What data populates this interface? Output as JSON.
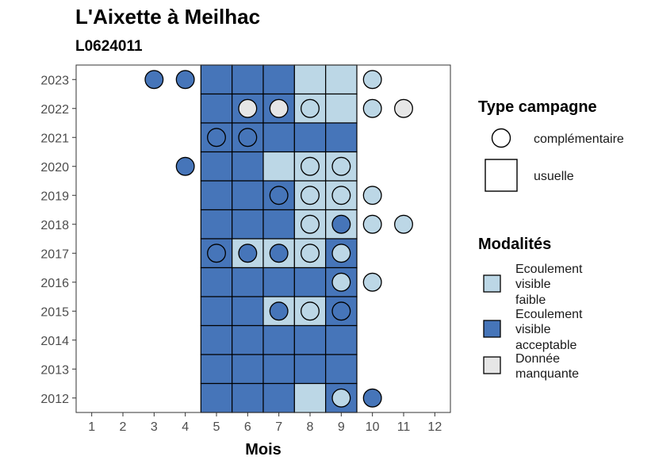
{
  "chart_data": {
    "type": "heatmap",
    "title": "L'Aixette à Meilhac",
    "subtitle": "L0624011",
    "xlabel": "Mois",
    "ylabel": "",
    "x_ticks": [
      "1",
      "2",
      "3",
      "4",
      "5",
      "6",
      "7",
      "8",
      "9",
      "10",
      "11",
      "12"
    ],
    "y_ticks": [
      "2012",
      "2013",
      "2014",
      "2015",
      "2016",
      "2017",
      "2018",
      "2019",
      "2020",
      "2021",
      "2022",
      "2023"
    ],
    "xlim": [
      0.5,
      12.5
    ],
    "ylim": [
      2011.5,
      2023.5
    ],
    "grid": false,
    "colors": {
      "faible": "#bcd7e6",
      "acceptable": "#4675b9",
      "manquante": "#e6e6e6"
    },
    "legend_type": {
      "title": "Type campagne",
      "items": [
        {
          "key": "complementaire",
          "label": "complémentaire",
          "shape": "circle"
        },
        {
          "key": "usuelle",
          "label": "usuelle",
          "shape": "square"
        }
      ]
    },
    "legend_modalites": {
      "title": "Modalités",
      "items": [
        {
          "key": "faible",
          "lines": [
            "Ecoulement",
            "visible",
            "faible"
          ]
        },
        {
          "key": "acceptable",
          "lines": [
            "Ecoulement",
            "visible",
            "acceptable"
          ]
        },
        {
          "key": "manquante",
          "lines": [
            "Donnée",
            "manquante"
          ]
        }
      ]
    },
    "usuelle": [
      {
        "year": 2023,
        "cells": {
          "5": "acceptable",
          "6": "acceptable",
          "7": "acceptable",
          "8": "faible",
          "9": "faible"
        }
      },
      {
        "year": 2022,
        "cells": {
          "5": "acceptable",
          "6": "acceptable",
          "7": "acceptable",
          "8": "faible",
          "9": "faible"
        }
      },
      {
        "year": 2021,
        "cells": {
          "5": "acceptable",
          "6": "acceptable",
          "7": "acceptable",
          "8": "acceptable",
          "9": "acceptable"
        }
      },
      {
        "year": 2020,
        "cells": {
          "5": "acceptable",
          "6": "acceptable",
          "7": "faible",
          "8": "faible",
          "9": "faible"
        }
      },
      {
        "year": 2019,
        "cells": {
          "5": "acceptable",
          "6": "acceptable",
          "7": "acceptable",
          "8": "faible",
          "9": "faible"
        }
      },
      {
        "year": 2018,
        "cells": {
          "5": "acceptable",
          "6": "acceptable",
          "7": "acceptable",
          "8": "faible",
          "9": "faible"
        }
      },
      {
        "year": 2017,
        "cells": {
          "5": "acceptable",
          "6": "faible",
          "7": "faible",
          "8": "faible",
          "9": "acceptable"
        }
      },
      {
        "year": 2016,
        "cells": {
          "5": "acceptable",
          "6": "acceptable",
          "7": "acceptable",
          "8": "acceptable",
          "9": "acceptable"
        }
      },
      {
        "year": 2015,
        "cells": {
          "5": "acceptable",
          "6": "acceptable",
          "7": "faible",
          "8": "faible",
          "9": "acceptable"
        }
      },
      {
        "year": 2014,
        "cells": {
          "5": "acceptable",
          "6": "acceptable",
          "7": "acceptable",
          "8": "acceptable",
          "9": "acceptable"
        }
      },
      {
        "year": 2013,
        "cells": {
          "5": "acceptable",
          "6": "acceptable",
          "7": "acceptable",
          "8": "acceptable",
          "9": "acceptable"
        }
      },
      {
        "year": 2012,
        "cells": {
          "5": "acceptable",
          "6": "acceptable",
          "7": "acceptable",
          "8": "faible",
          "9": "acceptable"
        }
      }
    ],
    "complementaire": [
      {
        "year": 2023,
        "month": 3,
        "value": "acceptable"
      },
      {
        "year": 2023,
        "month": 4,
        "value": "acceptable"
      },
      {
        "year": 2023,
        "month": 10,
        "value": "faible"
      },
      {
        "year": 2022,
        "month": 6,
        "value": "manquante"
      },
      {
        "year": 2022,
        "month": 7,
        "value": "manquante"
      },
      {
        "year": 2022,
        "month": 8,
        "value": "faible"
      },
      {
        "year": 2022,
        "month": 10,
        "value": "faible"
      },
      {
        "year": 2022,
        "month": 11,
        "value": "manquante"
      },
      {
        "year": 2021,
        "month": 5,
        "value": "acceptable"
      },
      {
        "year": 2021,
        "month": 6,
        "value": "acceptable"
      },
      {
        "year": 2020,
        "month": 4,
        "value": "acceptable"
      },
      {
        "year": 2020,
        "month": 8,
        "value": "faible"
      },
      {
        "year": 2020,
        "month": 9,
        "value": "faible"
      },
      {
        "year": 2019,
        "month": 7,
        "value": "acceptable"
      },
      {
        "year": 2019,
        "month": 8,
        "value": "faible"
      },
      {
        "year": 2019,
        "month": 9,
        "value": "faible"
      },
      {
        "year": 2019,
        "month": 10,
        "value": "faible"
      },
      {
        "year": 2018,
        "month": 8,
        "value": "faible"
      },
      {
        "year": 2018,
        "month": 9,
        "value": "acceptable"
      },
      {
        "year": 2018,
        "month": 10,
        "value": "faible"
      },
      {
        "year": 2018,
        "month": 11,
        "value": "faible"
      },
      {
        "year": 2017,
        "month": 5,
        "value": "acceptable"
      },
      {
        "year": 2017,
        "month": 6,
        "value": "acceptable"
      },
      {
        "year": 2017,
        "month": 7,
        "value": "acceptable"
      },
      {
        "year": 2017,
        "month": 8,
        "value": "faible"
      },
      {
        "year": 2017,
        "month": 9,
        "value": "faible"
      },
      {
        "year": 2016,
        "month": 9,
        "value": "faible"
      },
      {
        "year": 2016,
        "month": 10,
        "value": "faible"
      },
      {
        "year": 2015,
        "month": 7,
        "value": "acceptable"
      },
      {
        "year": 2015,
        "month": 8,
        "value": "faible"
      },
      {
        "year": 2015,
        "month": 9,
        "value": "acceptable"
      },
      {
        "year": 2012,
        "month": 9,
        "value": "faible"
      },
      {
        "year": 2012,
        "month": 10,
        "value": "acceptable"
      }
    ]
  }
}
